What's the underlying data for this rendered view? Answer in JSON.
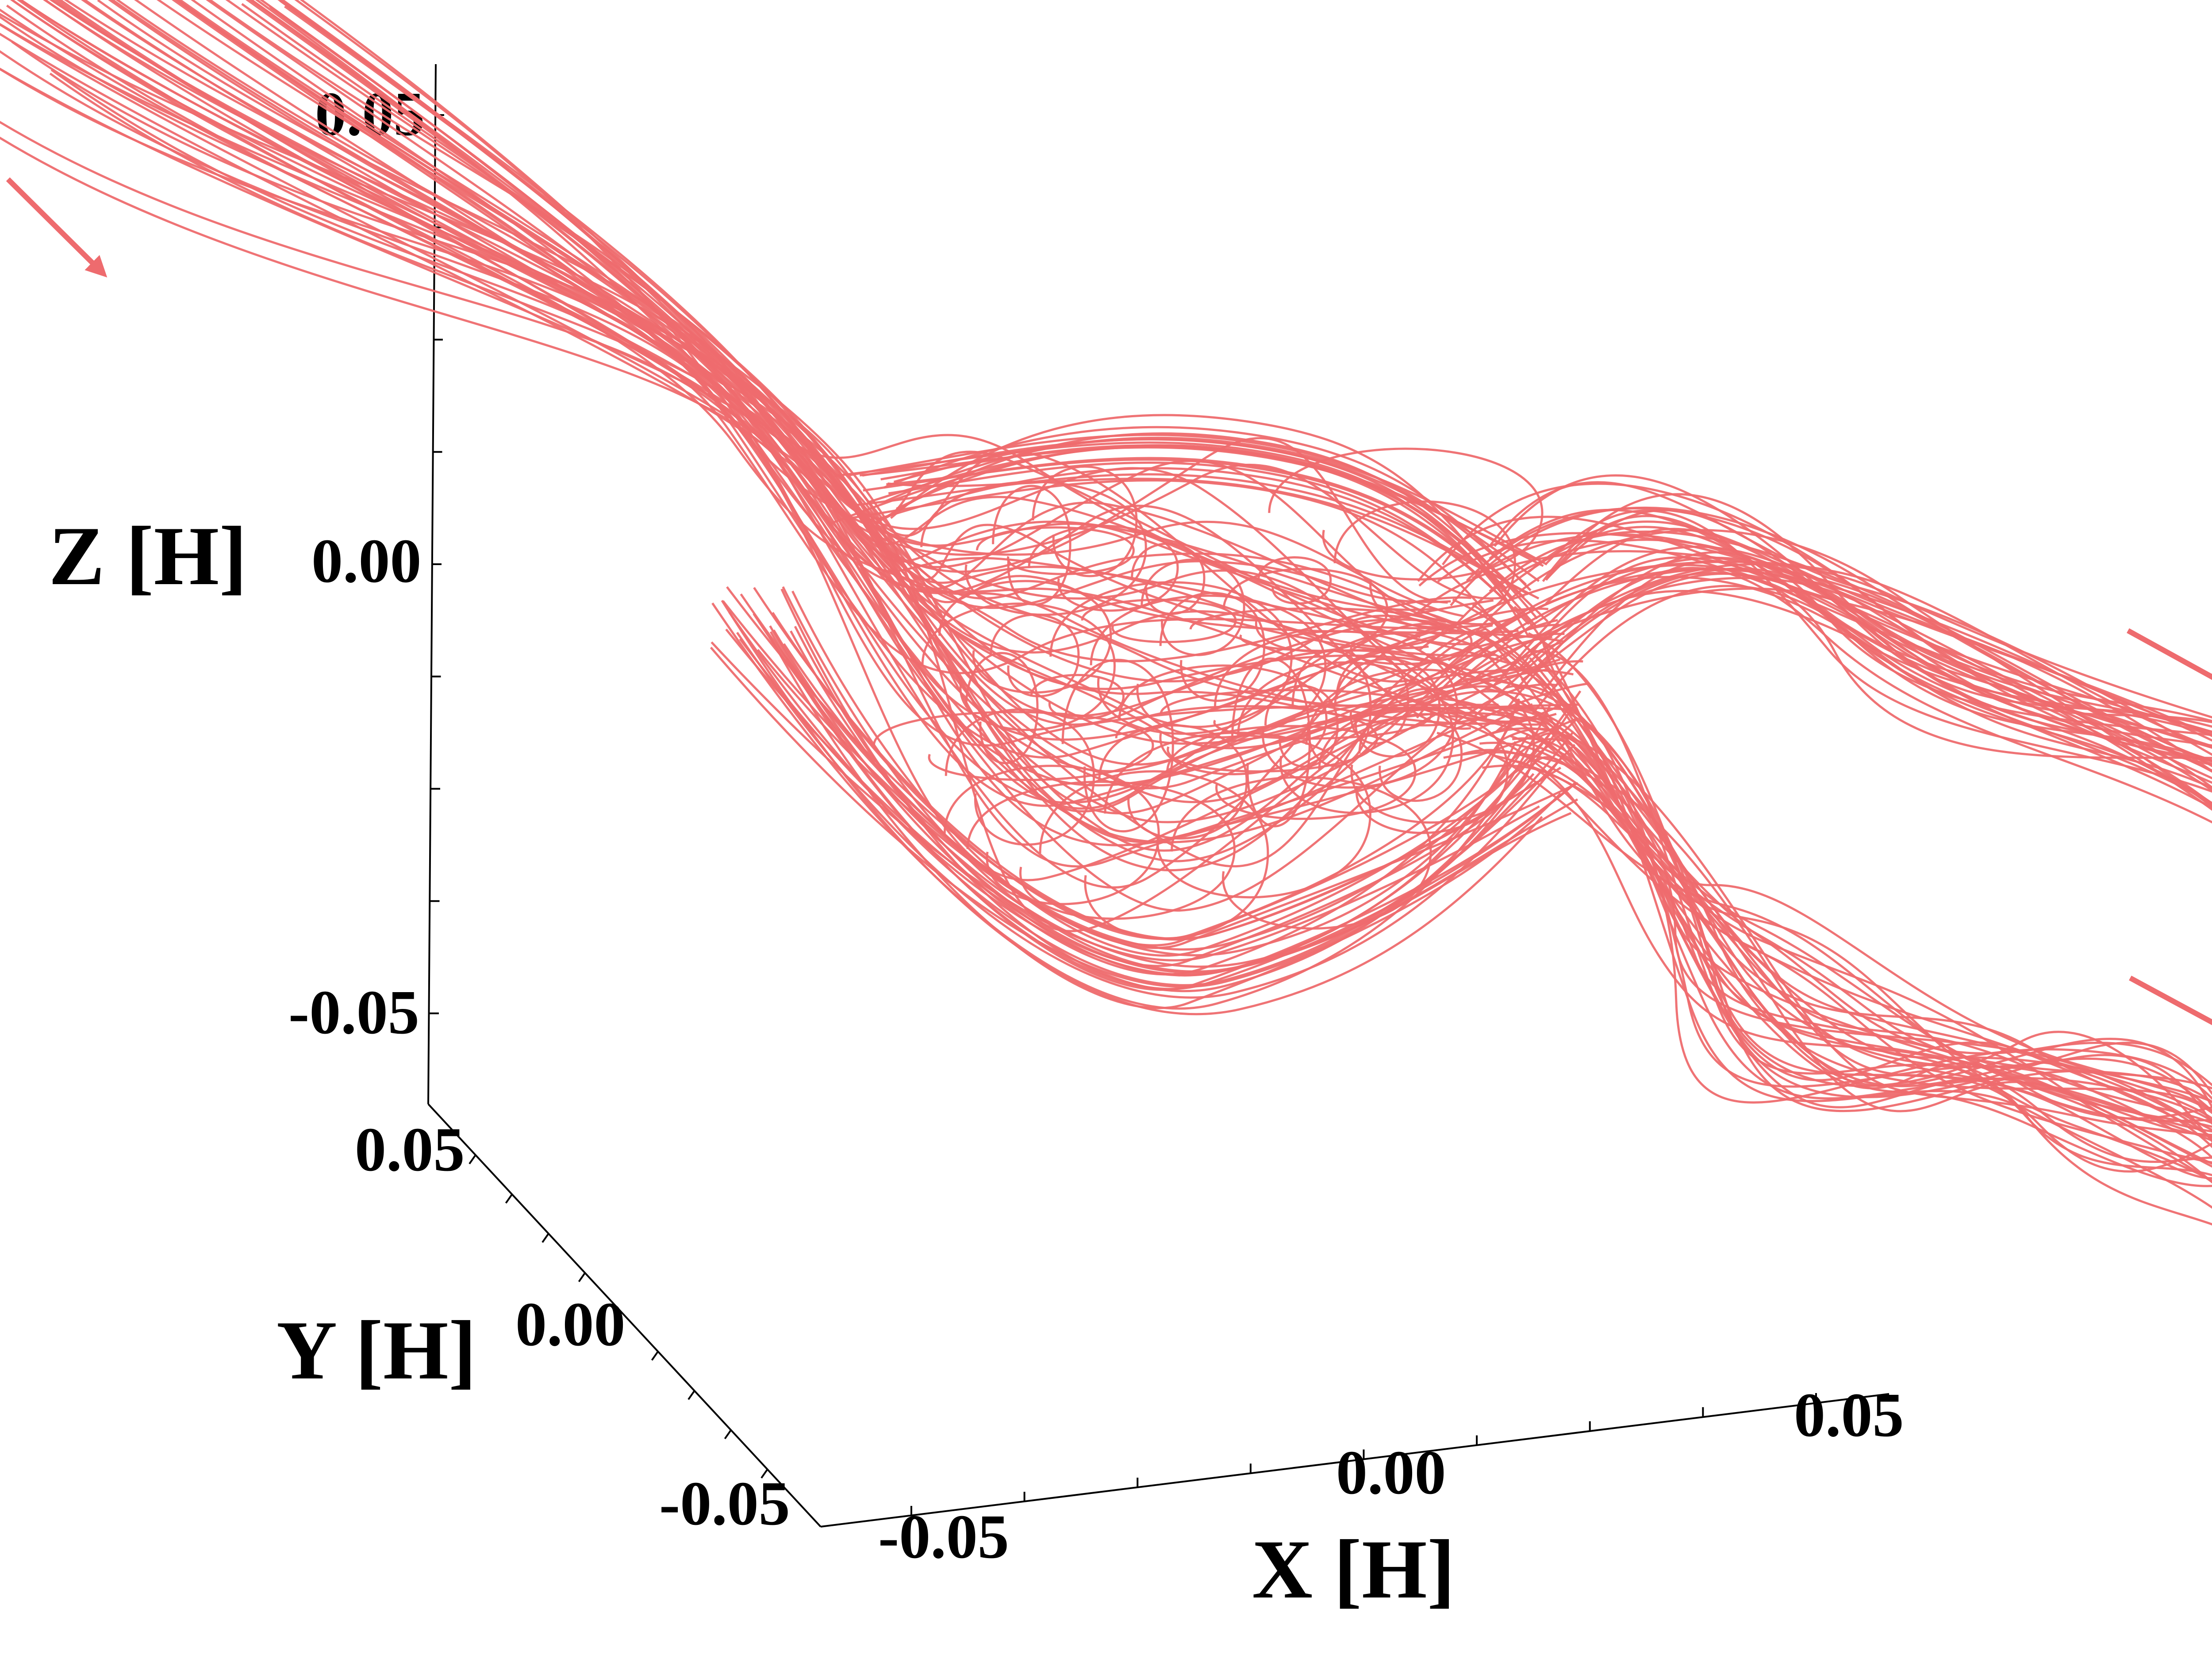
{
  "chart_data": {
    "type": "line",
    "projection": "3d",
    "x_axis": {
      "label": "X [H]",
      "ticks": [
        "-0.05",
        "0.00",
        "0.05"
      ],
      "range": [
        -0.05,
        0.05
      ]
    },
    "y_axis": {
      "label": "Y [H]",
      "ticks": [
        "0.05",
        "0.00",
        "-0.05"
      ],
      "range": [
        -0.05,
        0.05
      ]
    },
    "z_axis": {
      "label": "Z [H]",
      "ticks": [
        "0.05",
        "0.00",
        "-0.05"
      ],
      "range": [
        -0.05,
        0.05
      ]
    },
    "grid": false,
    "legend": "none",
    "series_color": "#ee6b6e",
    "flow_arrows": [
      "inflow-top-left",
      "outflow-upper-right",
      "outflow-lower-right"
    ],
    "series": [
      {
        "kind": "incoming-bundle",
        "count": 60
      },
      {
        "kind": "upper-outgoing-bundle",
        "count": 40
      },
      {
        "kind": "lower-outgoing-bundle",
        "count": 40
      }
    ]
  }
}
